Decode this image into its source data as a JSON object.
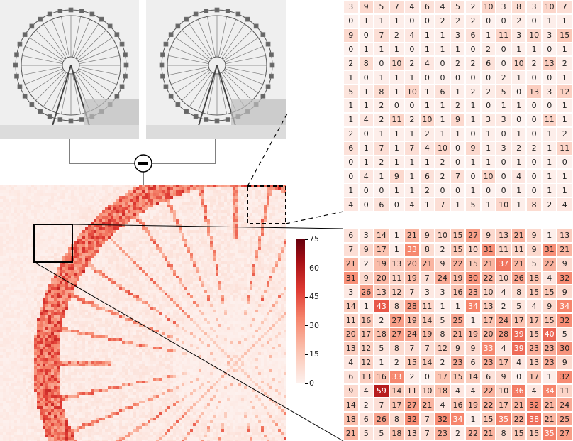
{
  "colors": {
    "heat_low": "#fdf1ee",
    "heat_high": "#67000d",
    "line": "#000000"
  },
  "operator_icon": "minus-circle-icon",
  "colorbar": {
    "min": 0,
    "max": 75,
    "ticks": [
      "0",
      "15",
      "30",
      "45",
      "60",
      "75"
    ]
  },
  "top_matrix": {
    "rows": [
      [
        3,
        9,
        5,
        7,
        4,
        6,
        4,
        5,
        2,
        10,
        3,
        8,
        3,
        10,
        7
      ],
      [
        0,
        1,
        1,
        1,
        0,
        0,
        2,
        2,
        2,
        0,
        0,
        2,
        0,
        1,
        1
      ],
      [
        9,
        0,
        7,
        2,
        4,
        1,
        1,
        3,
        6,
        1,
        11,
        3,
        10,
        3,
        15
      ],
      [
        0,
        1,
        1,
        1,
        0,
        1,
        1,
        1,
        0,
        2,
        0,
        1,
        1,
        0,
        1
      ],
      [
        2,
        8,
        0,
        10,
        2,
        4,
        0,
        2,
        2,
        6,
        0,
        10,
        2,
        13,
        2
      ],
      [
        1,
        0,
        1,
        1,
        1,
        0,
        0,
        0,
        0,
        0,
        2,
        1,
        0,
        0,
        1
      ],
      [
        5,
        1,
        8,
        1,
        10,
        1,
        6,
        1,
        2,
        2,
        5,
        0,
        13,
        3,
        12
      ],
      [
        1,
        1,
        2,
        0,
        0,
        1,
        1,
        2,
        1,
        0,
        1,
        1,
        0,
        0,
        1
      ],
      [
        1,
        4,
        2,
        11,
        2,
        10,
        1,
        9,
        1,
        3,
        3,
        0,
        0,
        11,
        1
      ],
      [
        2,
        0,
        1,
        1,
        1,
        2,
        1,
        1,
        0,
        1,
        0,
        1,
        0,
        1,
        2
      ],
      [
        6,
        1,
        7,
        1,
        7,
        4,
        10,
        0,
        9,
        1,
        3,
        2,
        2,
        1,
        11
      ],
      [
        0,
        1,
        2,
        1,
        1,
        1,
        2,
        0,
        1,
        1,
        0,
        1,
        0,
        1,
        0
      ],
      [
        0,
        4,
        1,
        9,
        1,
        6,
        2,
        7,
        0,
        10,
        0,
        4,
        0,
        1,
        1
      ],
      [
        1,
        0,
        0,
        1,
        1,
        2,
        0,
        0,
        1,
        0,
        0,
        1,
        0,
        1,
        1
      ],
      [
        4,
        0,
        6,
        0,
        4,
        1,
        7,
        1,
        5,
        1,
        10,
        1,
        8,
        2,
        4
      ]
    ]
  },
  "bottom_matrix": {
    "rows": [
      [
        6,
        3,
        14,
        1,
        21,
        9,
        10,
        15,
        27,
        9,
        13,
        21,
        9,
        1,
        13
      ],
      [
        7,
        9,
        17,
        1,
        33,
        8,
        2,
        15,
        10,
        31,
        11,
        11,
        9,
        31,
        21
      ],
      [
        21,
        2,
        19,
        13,
        20,
        21,
        9,
        22,
        15,
        21,
        37,
        21,
        5,
        22,
        9
      ],
      [
        31,
        9,
        20,
        11,
        19,
        7,
        24,
        19,
        30,
        22,
        10,
        26,
        18,
        4,
        32
      ],
      [
        3,
        26,
        13,
        12,
        7,
        3,
        3,
        16,
        23,
        10,
        4,
        8,
        15,
        15,
        9
      ],
      [
        14,
        1,
        43,
        8,
        28,
        11,
        1,
        1,
        34,
        13,
        2,
        5,
        4,
        9,
        34
      ],
      [
        11,
        16,
        2,
        27,
        19,
        14,
        5,
        25,
        1,
        17,
        24,
        17,
        17,
        15,
        32
      ],
      [
        20,
        17,
        18,
        27,
        24,
        19,
        8,
        21,
        19,
        20,
        28,
        39,
        15,
        40,
        5
      ],
      [
        13,
        12,
        5,
        8,
        7,
        7,
        12,
        9,
        9,
        33,
        4,
        39,
        23,
        23,
        30
      ],
      [
        4,
        12,
        1,
        2,
        15,
        14,
        2,
        23,
        6,
        23,
        17,
        4,
        13,
        23,
        9
      ],
      [
        6,
        13,
        16,
        33,
        2,
        0,
        17,
        15,
        14,
        6,
        9,
        0,
        17,
        1,
        32
      ],
      [
        9,
        4,
        59,
        14,
        11,
        10,
        18,
        4,
        4,
        22,
        10,
        36,
        4,
        34,
        11
      ],
      [
        14,
        2,
        7,
        17,
        27,
        21,
        4,
        16,
        19,
        22,
        17,
        21,
        32,
        21,
        24
      ],
      [
        18,
        6,
        26,
        8,
        32,
        7,
        32,
        34,
        1,
        15,
        35,
        22,
        38,
        21,
        25
      ],
      [
        21,
        5,
        5,
        18,
        13,
        7,
        23,
        2,
        22,
        21,
        8,
        15,
        15,
        35,
        27
      ]
    ]
  }
}
